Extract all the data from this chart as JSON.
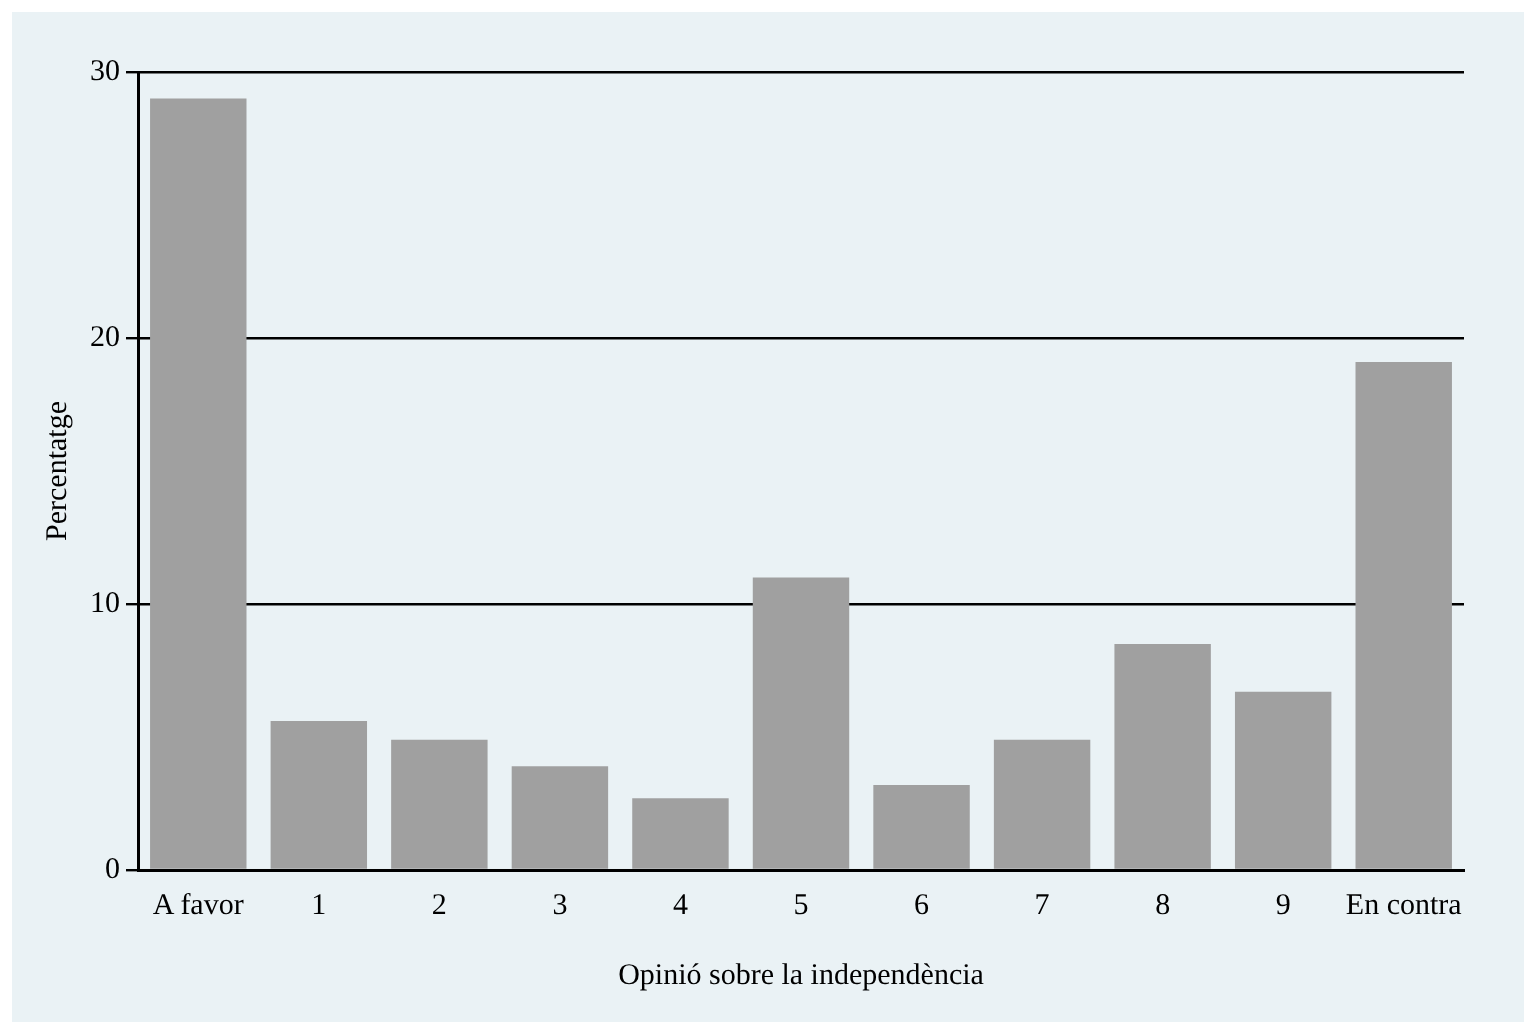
{
  "chart_data": {
    "type": "bar",
    "xlabel": "Opinió sobre la independència",
    "ylabel": "Percentatge",
    "categories": [
      "A favor",
      "1",
      "2",
      "3",
      "4",
      "5",
      "6",
      "7",
      "8",
      "9",
      "En contra"
    ],
    "values": [
      29.0,
      5.6,
      4.9,
      3.9,
      2.7,
      11.0,
      3.2,
      4.9,
      8.5,
      6.7,
      19.1
    ],
    "color": "#a0a0a0",
    "ylim": [
      0,
      30
    ],
    "yticks": [
      0,
      10,
      20,
      30
    ],
    "grid": "y"
  }
}
